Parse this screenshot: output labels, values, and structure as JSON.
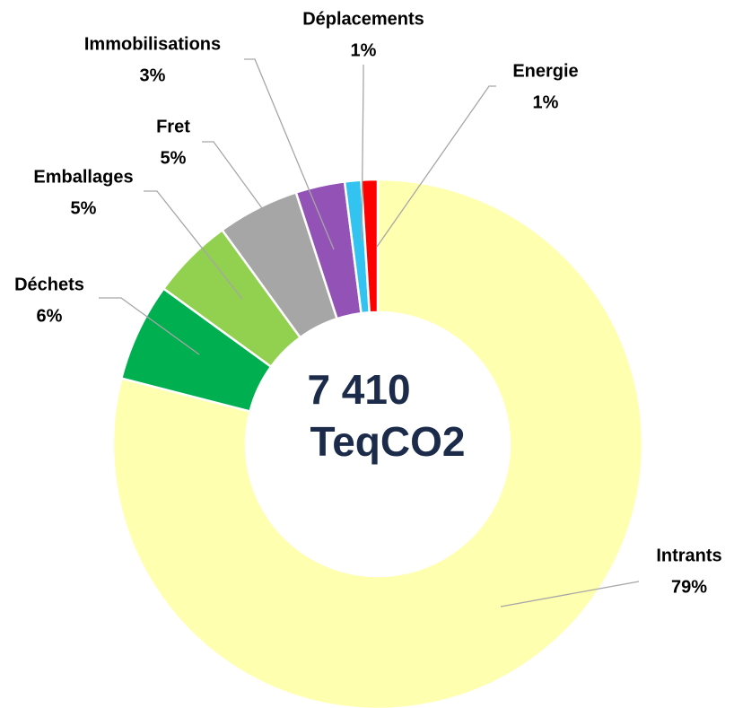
{
  "chart_data": {
    "type": "donut",
    "categories": [
      "Intrants",
      "Déchets",
      "Emballages",
      "Fret",
      "Immobilisations",
      "Déplacements",
      "Energie"
    ],
    "values": [
      79,
      6,
      5,
      5,
      3,
      1,
      1
    ],
    "value_labels": [
      "79%",
      "6%",
      "5%",
      "5%",
      "3%",
      "1%",
      "1%"
    ],
    "colors": [
      "#ffffb0",
      "#00b050",
      "#92d050",
      "#a6a6a6",
      "#9353b6",
      "#33c3f0",
      "#ff0000"
    ],
    "center_label": [
      "7 410",
      "TeqCO2"
    ]
  }
}
